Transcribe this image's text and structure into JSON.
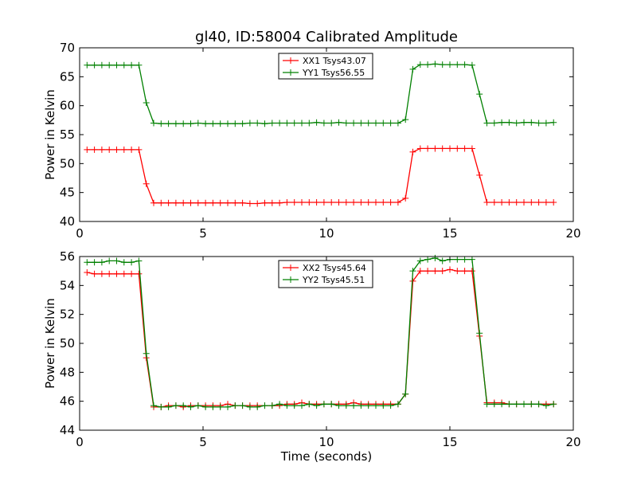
{
  "figure": {
    "title": "gl40, ID:58004 Calibrated Amplitude",
    "xlabel": "Time (seconds)"
  },
  "chart_data": [
    {
      "type": "line",
      "title": "gl40, ID:58004 Calibrated Amplitude",
      "xlabel": "",
      "ylabel": "Power in Kelvin",
      "xlim": [
        0,
        20
      ],
      "ylim": [
        40,
        70
      ],
      "xticks": [
        0,
        5,
        10,
        15,
        20
      ],
      "yticks": [
        40,
        45,
        50,
        55,
        60,
        65,
        70
      ],
      "legend_position": "top-center",
      "grid": false,
      "x": [
        0.3,
        0.6,
        0.9,
        1.2,
        1.5,
        1.8,
        2.1,
        2.4,
        2.7,
        3.0,
        3.3,
        3.6,
        3.9,
        4.2,
        4.5,
        4.8,
        5.1,
        5.4,
        5.7,
        6.0,
        6.3,
        6.6,
        6.9,
        7.2,
        7.5,
        7.8,
        8.1,
        8.4,
        8.7,
        9.0,
        9.3,
        9.6,
        9.9,
        10.2,
        10.5,
        10.8,
        11.1,
        11.4,
        11.7,
        12.0,
        12.3,
        12.6,
        12.9,
        13.2,
        13.5,
        13.8,
        14.1,
        14.4,
        14.7,
        15.0,
        15.3,
        15.6,
        15.9,
        16.2,
        16.5,
        16.8,
        17.1,
        17.4,
        17.7,
        18.0,
        18.3,
        18.6,
        18.9,
        19.2
      ],
      "series": [
        {
          "name": "XX1 Tsys43.07",
          "color": "#ff0000",
          "values": [
            52.4,
            52.4,
            52.4,
            52.4,
            52.4,
            52.4,
            52.4,
            52.4,
            46.5,
            43.2,
            43.2,
            43.2,
            43.2,
            43.2,
            43.2,
            43.2,
            43.2,
            43.2,
            43.2,
            43.2,
            43.2,
            43.2,
            43.1,
            43.1,
            43.2,
            43.2,
            43.2,
            43.3,
            43.3,
            43.3,
            43.3,
            43.3,
            43.3,
            43.3,
            43.3,
            43.3,
            43.3,
            43.3,
            43.3,
            43.3,
            43.3,
            43.3,
            43.3,
            44.0,
            52.0,
            52.6,
            52.6,
            52.6,
            52.6,
            52.6,
            52.6,
            52.6,
            52.6,
            48.0,
            43.3,
            43.3,
            43.3,
            43.3,
            43.3,
            43.3,
            43.3,
            43.3,
            43.3,
            43.3
          ]
        },
        {
          "name": "YY1 Tsys56.55",
          "color": "#008000",
          "values": [
            67.0,
            67.0,
            67.0,
            67.0,
            67.0,
            67.0,
            67.0,
            67.0,
            60.5,
            57.0,
            56.9,
            56.9,
            56.9,
            56.9,
            56.9,
            57.0,
            56.9,
            56.9,
            56.9,
            56.9,
            56.9,
            56.9,
            57.0,
            57.0,
            56.9,
            57.0,
            57.0,
            57.0,
            57.0,
            57.0,
            57.0,
            57.1,
            57.0,
            57.0,
            57.1,
            57.0,
            57.0,
            57.0,
            57.0,
            57.0,
            57.0,
            57.0,
            57.0,
            57.6,
            66.3,
            67.1,
            67.1,
            67.2,
            67.1,
            67.1,
            67.1,
            67.1,
            67.0,
            62.0,
            57.0,
            57.0,
            57.1,
            57.1,
            57.0,
            57.1,
            57.1,
            57.0,
            57.0,
            57.1
          ]
        }
      ]
    },
    {
      "type": "line",
      "title": "",
      "xlabel": "Time (seconds)",
      "ylabel": "Power in Kelvin",
      "xlim": [
        0,
        20
      ],
      "ylim": [
        44,
        56
      ],
      "xticks": [
        0,
        5,
        10,
        15,
        20
      ],
      "yticks": [
        44,
        46,
        48,
        50,
        52,
        54,
        56
      ],
      "legend_position": "top-center",
      "grid": false,
      "x": [
        0.3,
        0.6,
        0.9,
        1.2,
        1.5,
        1.8,
        2.1,
        2.4,
        2.7,
        3.0,
        3.3,
        3.6,
        3.9,
        4.2,
        4.5,
        4.8,
        5.1,
        5.4,
        5.7,
        6.0,
        6.3,
        6.6,
        6.9,
        7.2,
        7.5,
        7.8,
        8.1,
        8.4,
        8.7,
        9.0,
        9.3,
        9.6,
        9.9,
        10.2,
        10.5,
        10.8,
        11.1,
        11.4,
        11.7,
        12.0,
        12.3,
        12.6,
        12.9,
        13.2,
        13.5,
        13.8,
        14.1,
        14.4,
        14.7,
        15.0,
        15.3,
        15.6,
        15.9,
        16.2,
        16.5,
        16.8,
        17.1,
        17.4,
        17.7,
        18.0,
        18.3,
        18.6,
        18.9,
        19.2
      ],
      "series": [
        {
          "name": "XX2 Tsys45.64",
          "color": "#ff0000",
          "values": [
            54.9,
            54.8,
            54.8,
            54.8,
            54.8,
            54.8,
            54.8,
            54.8,
            49.0,
            45.6,
            45.6,
            45.7,
            45.7,
            45.6,
            45.7,
            45.7,
            45.7,
            45.7,
            45.7,
            45.8,
            45.7,
            45.7,
            45.7,
            45.7,
            45.7,
            45.7,
            45.7,
            45.8,
            45.8,
            45.9,
            45.8,
            45.8,
            45.8,
            45.8,
            45.8,
            45.8,
            45.9,
            45.8,
            45.8,
            45.8,
            45.8,
            45.8,
            45.8,
            46.5,
            54.3,
            55.0,
            55.0,
            55.0,
            55.0,
            55.1,
            55.0,
            55.0,
            55.0,
            50.5,
            45.9,
            45.9,
            45.9,
            45.8,
            45.8,
            45.8,
            45.8,
            45.8,
            45.8,
            45.8
          ]
        },
        {
          "name": "YY2 Tsys45.51",
          "color": "#008000",
          "values": [
            55.6,
            55.6,
            55.6,
            55.7,
            55.7,
            55.6,
            55.6,
            55.7,
            49.3,
            45.7,
            45.6,
            45.6,
            45.7,
            45.7,
            45.6,
            45.7,
            45.6,
            45.6,
            45.6,
            45.6,
            45.7,
            45.7,
            45.6,
            45.6,
            45.7,
            45.7,
            45.8,
            45.7,
            45.7,
            45.7,
            45.8,
            45.7,
            45.8,
            45.8,
            45.7,
            45.7,
            45.7,
            45.7,
            45.7,
            45.7,
            45.7,
            45.7,
            45.8,
            46.5,
            55.0,
            55.7,
            55.8,
            55.9,
            55.7,
            55.8,
            55.8,
            55.8,
            55.8,
            50.7,
            45.8,
            45.8,
            45.8,
            45.8,
            45.8,
            45.8,
            45.8,
            45.8,
            45.7,
            45.8
          ]
        }
      ]
    }
  ]
}
